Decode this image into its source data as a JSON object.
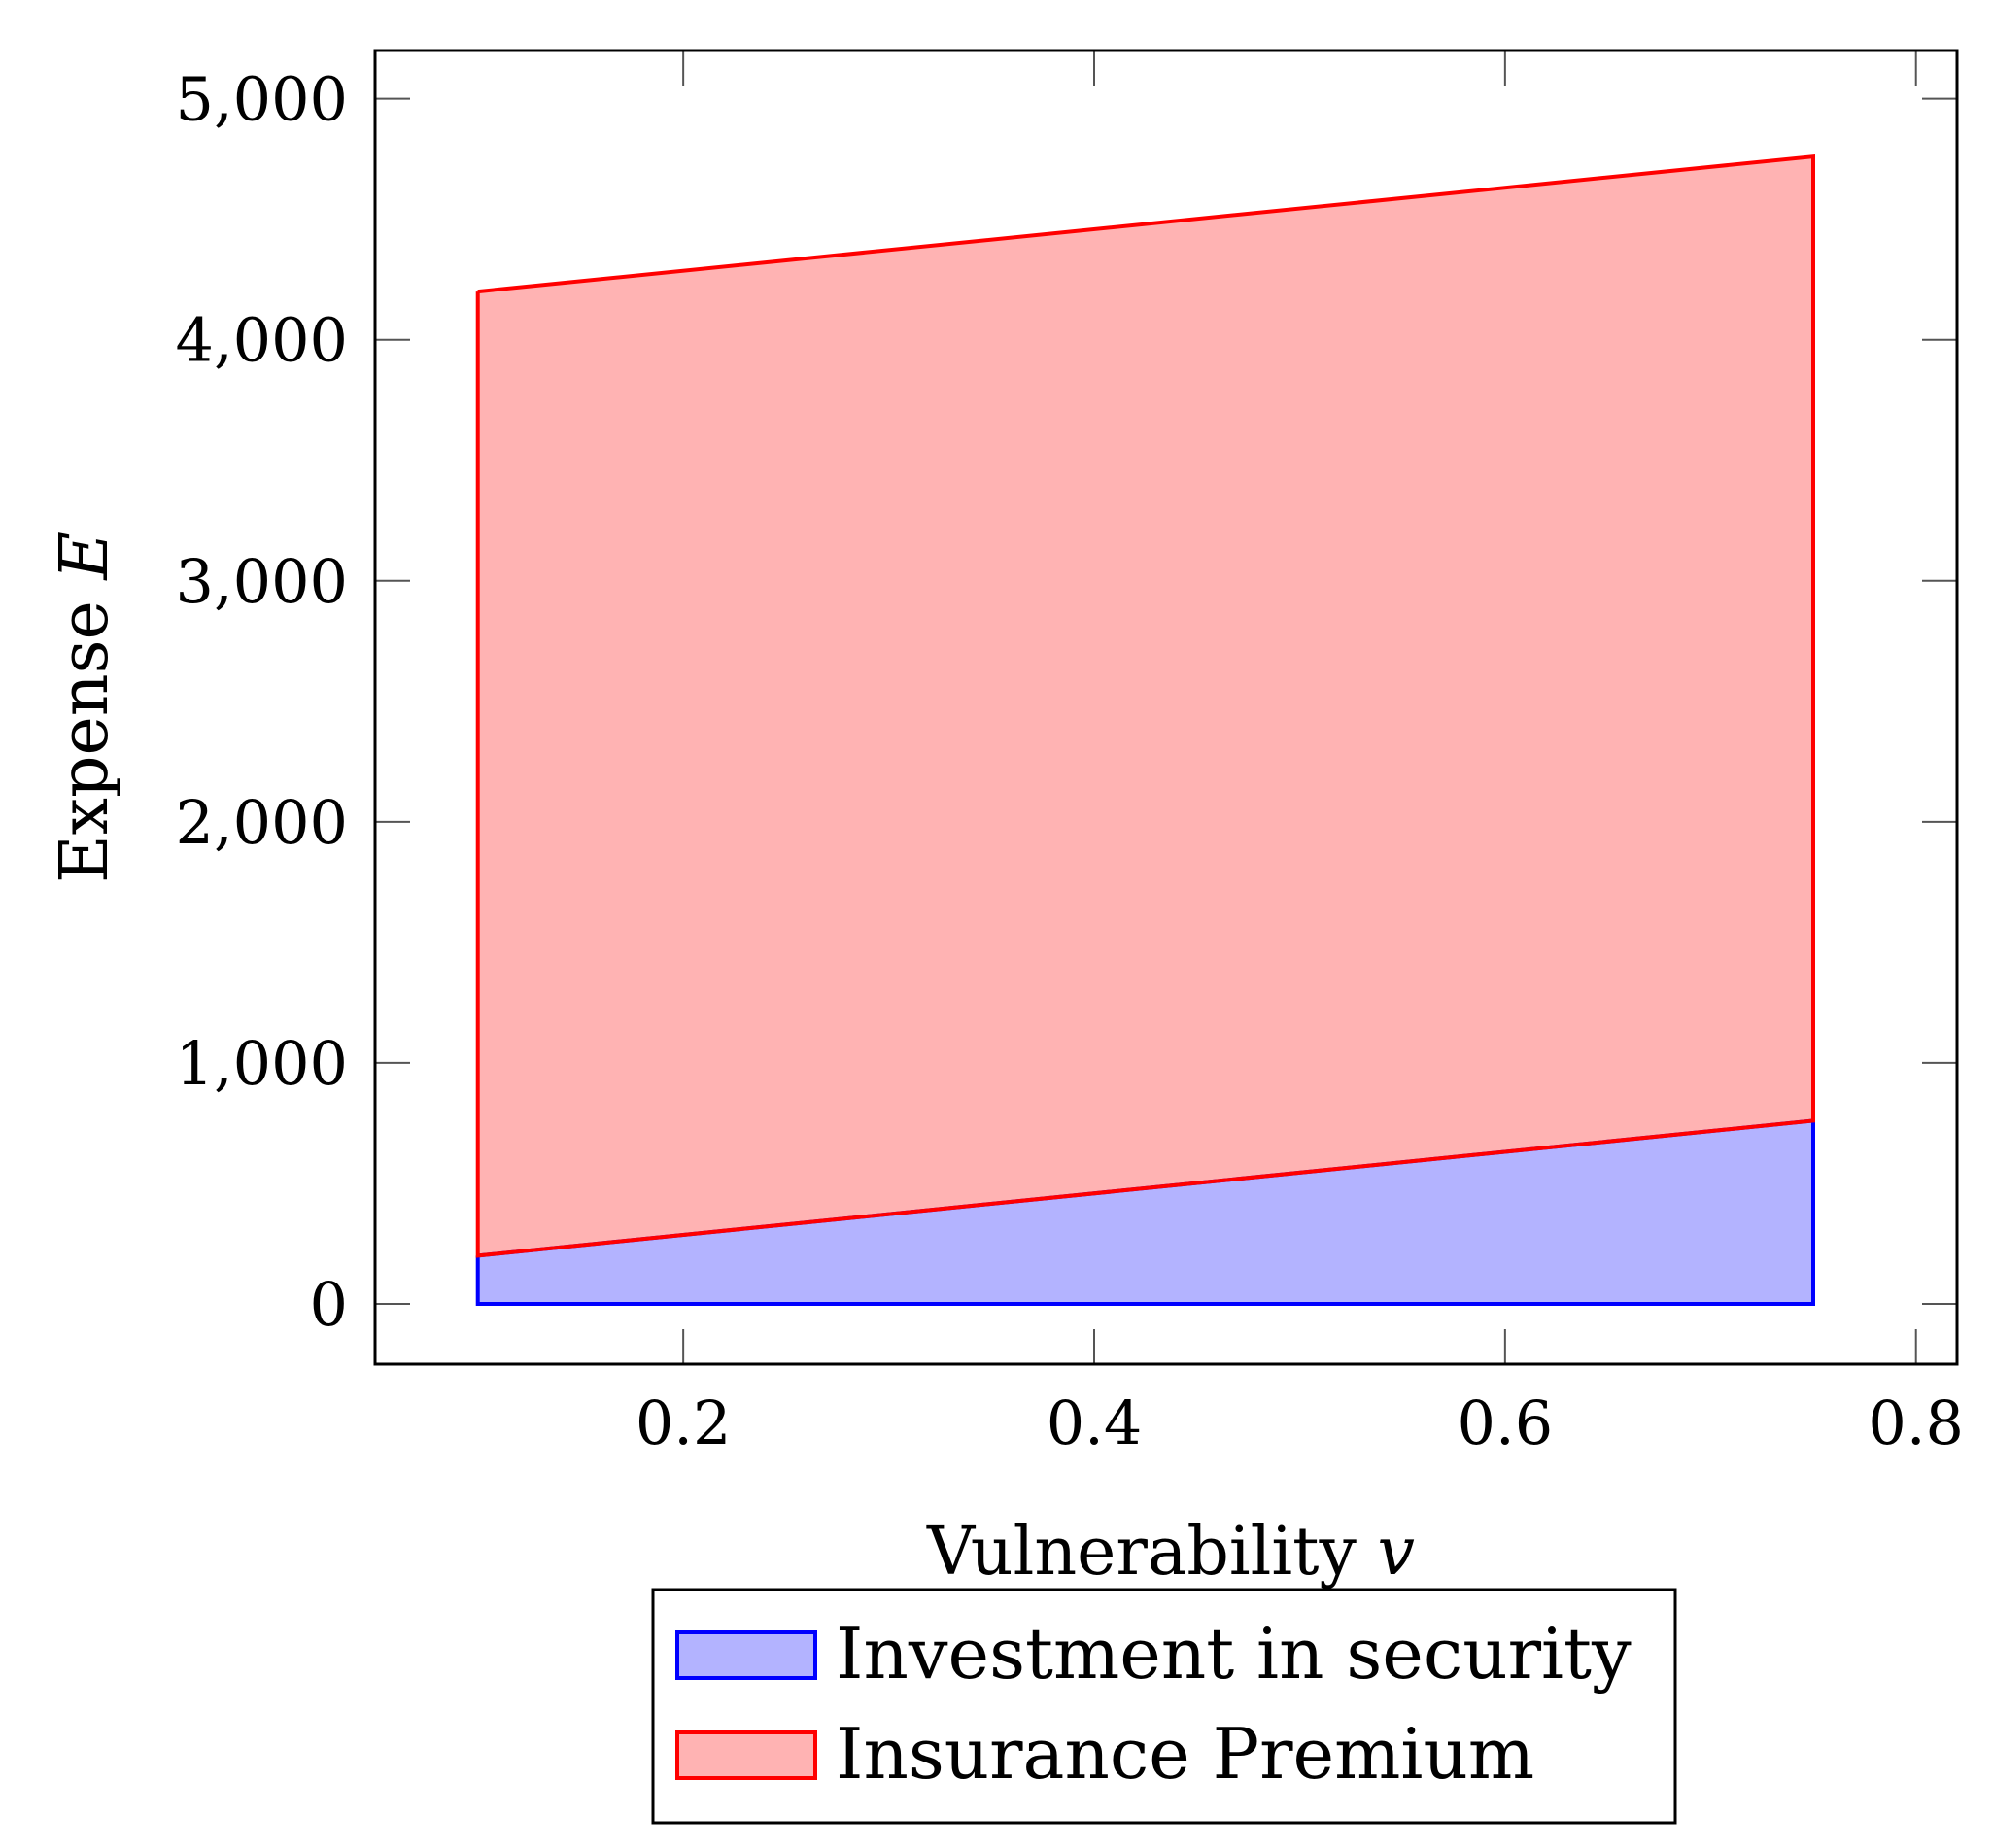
{
  "chart_data": {
    "type": "area",
    "stacked": true,
    "xlabel": "Vulnerability",
    "xlabel_var": "v",
    "ylabel": "Expense",
    "ylabel_var": "E",
    "xlim": [
      0.05,
      0.82
    ],
    "ylim": [
      -250,
      5200
    ],
    "x_ticks": [
      0.2,
      0.4,
      0.6,
      0.8
    ],
    "x_tick_labels": [
      "0.2",
      "0.4",
      "0.6",
      "0.8"
    ],
    "y_ticks": [
      0,
      1000,
      2000,
      3000,
      4000,
      5000
    ],
    "y_tick_labels": [
      "0",
      "1,000",
      "2,000",
      "3,000",
      "4,000",
      "5,000"
    ],
    "x": [
      0.1,
      0.75
    ],
    "series": [
      {
        "name": "Investment in security",
        "values": [
          200,
          760
        ],
        "line_color": "#0000ff",
        "fill_color": "#b3b3ff"
      },
      {
        "name": "Insurance Premium",
        "values": [
          4000,
          4000
        ],
        "line_color": "#ff0000",
        "fill_color": "#ffb3b3"
      }
    ],
    "grid": false,
    "legend_position": "bottom-center"
  }
}
